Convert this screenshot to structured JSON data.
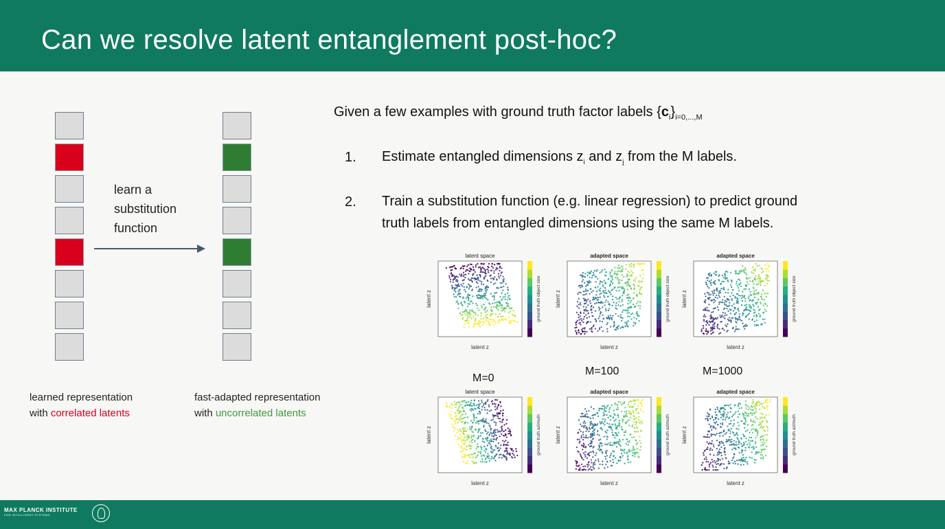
{
  "slide": {
    "title": "Can we resolve latent entanglement post-hoc?",
    "footer": {
      "institute": "MAX PLANCK INSTITUTE",
      "subtitle": "FOR INTELLIGENT SYSTEMS"
    }
  },
  "diagram": {
    "arrow_label": [
      "learn a",
      "substitution",
      "function"
    ],
    "left_caption_1": "learned representation",
    "left_caption_2_prefix": "with ",
    "left_caption_2_highlight": "correlated latents",
    "right_caption_1": "fast-adapted representation",
    "right_caption_2_prefix": "with ",
    "right_caption_2_highlight": "uncorrelated latents",
    "colors": {
      "entangled": "#d9001b",
      "resolved": "#2e7d32",
      "neutral": "#dcdcdc"
    }
  },
  "content": {
    "intro_text": "Given a few examples with ground truth factor labels {",
    "intro_bold": "c",
    "intro_sub_i": "i",
    "intro_close": "}",
    "intro_sub_range": "i=0,...,M",
    "step1_num": "1.",
    "step1_a": "Estimate entangled dimensions z",
    "step1_sub_i": "i",
    "step1_b": " and z",
    "step1_sub_j": "j",
    "step1_c": " from the M labels.",
    "step2_num": "2.",
    "step2_line1": "Train a substitution function (e.g. linear regression) to predict ground",
    "step2_line2": "truth labels from entangled dimensions using the same M labels."
  },
  "plots": {
    "m_labels": [
      "M=0",
      "M=100",
      "M=1000"
    ],
    "titles": [
      "latent space",
      "adapted space",
      "adapted space",
      "latent space",
      "adapted space",
      "adapted space"
    ],
    "colorbar_labels": [
      "ground truth object size",
      "ground truth object size",
      "ground truth object size",
      "ground truth azimuth",
      "ground truth azimuth",
      "ground truth azimuth"
    ],
    "xlabel": "latent z",
    "ylabel": "latent z",
    "colormap": "viridis"
  }
}
